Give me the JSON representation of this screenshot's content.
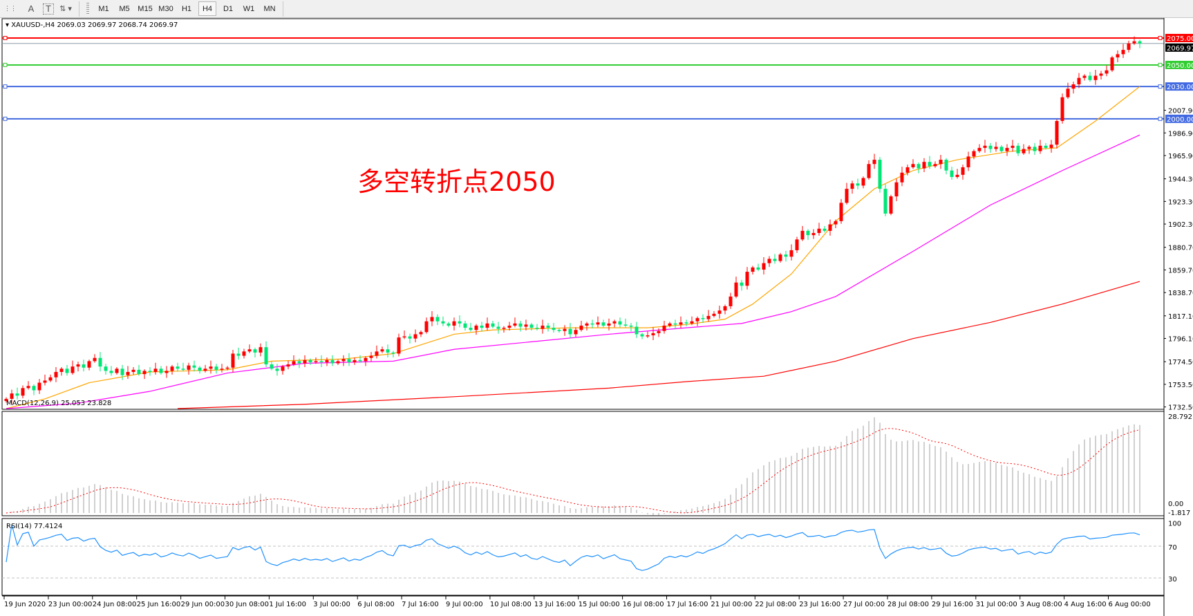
{
  "toolbar": {
    "tools": [
      {
        "icon": "grid-properties-icon",
        "label": "⋮⋮"
      },
      {
        "icon": "text-tool-icon",
        "label": "A"
      },
      {
        "icon": "text-label-tool-icon",
        "label": "T"
      },
      {
        "icon": "arrows-tool-icon",
        "label": "⇅ ▾"
      }
    ],
    "timeframes": [
      "M1",
      "M5",
      "M15",
      "M30",
      "H1",
      "H4",
      "D1",
      "W1",
      "MN"
    ],
    "active_timeframe": "H4"
  },
  "header": {
    "symbol": "XAUUSD-,H4",
    "ohlc": "2069.03 2069.97 2068.74 2069.97"
  },
  "annotation": {
    "text": "多空转折点2050",
    "color": "#ff0000"
  },
  "colors": {
    "bull": "#ff0000",
    "bear": "#00e676",
    "ma_fast": "#ffa500",
    "ma_mid": "#ff00ff",
    "ma_slow": "#ff0000",
    "macd_hist": "#c0c0c0",
    "macd_signal": "#ff0000",
    "rsi": "#1e90ff"
  },
  "chart_data": [
    {
      "type": "candlestick",
      "price_axis": {
        "range": [
          1732.5,
          2075.0
        ],
        "ticks": [
          "2007.90",
          "1986.90",
          "1965.90",
          "1944.30",
          "1923.30",
          "1902.30",
          "1880.70",
          "1859.70",
          "1838.70",
          "1817.10",
          "1796.10",
          "1774.50",
          "1753.50",
          "1732.50"
        ]
      },
      "time_labels": [
        "19 Jun 2020",
        "23 Jun 00:00",
        "24 Jun 08:00",
        "25 Jun 16:00",
        "29 Jun 00:00",
        "30 Jun 08:00",
        "1 Jul 16:00",
        "3 Jul 00:00",
        "6 Jul 08:00",
        "7 Jul 16:00",
        "9 Jul 00:00",
        "10 Jul 08:00",
        "13 Jul 16:00",
        "15 Jul 00:00",
        "16 Jul 08:00",
        "17 Jul 16:00",
        "21 Jul 00:00",
        "22 Jul 08:00",
        "23 Jul 16:00",
        "27 Jul 00:00",
        "28 Jul 08:00",
        "29 Jul 16:00",
        "31 Jul 00:00",
        "3 Aug 08:00",
        "4 Aug 16:00",
        "6 Aug 00:00"
      ],
      "closes": [
        1740,
        1745,
        1743,
        1750,
        1752,
        1748,
        1755,
        1757,
        1760,
        1765,
        1768,
        1764,
        1770,
        1772,
        1769,
        1775,
        1778,
        1770,
        1766,
        1764,
        1768,
        1762,
        1765,
        1767,
        1763,
        1766,
        1765,
        1768,
        1764,
        1766,
        1770,
        1768,
        1767,
        1771,
        1769,
        1766,
        1768,
        1770,
        1767,
        1768,
        1769,
        1782,
        1780,
        1784,
        1786,
        1783,
        1788,
        1772,
        1768,
        1766,
        1770,
        1772,
        1775,
        1773,
        1776,
        1774,
        1775,
        1774,
        1776,
        1773,
        1775,
        1777,
        1774,
        1776,
        1775,
        1778,
        1780,
        1784,
        1786,
        1783,
        1782,
        1797,
        1798,
        1796,
        1800,
        1802,
        1812,
        1816,
        1812,
        1810,
        1808,
        1812,
        1810,
        1806,
        1804,
        1808,
        1806,
        1810,
        1807,
        1805,
        1806,
        1808,
        1810,
        1807,
        1809,
        1806,
        1805,
        1808,
        1806,
        1804,
        1803,
        1805,
        1800,
        1804,
        1808,
        1810,
        1809,
        1811,
        1808,
        1810,
        1812,
        1809,
        1808,
        1807,
        1800,
        1798,
        1799,
        1801,
        1803,
        1808,
        1810,
        1809,
        1811,
        1810,
        1812,
        1815,
        1814,
        1817,
        1819,
        1822,
        1826,
        1835,
        1848,
        1845,
        1858,
        1862,
        1860,
        1866,
        1870,
        1868,
        1874,
        1872,
        1878,
        1888,
        1896,
        1892,
        1894,
        1898,
        1896,
        1902,
        1905,
        1922,
        1935,
        1940,
        1938,
        1945,
        1958,
        1962,
        1935,
        1912,
        1928,
        1941,
        1950,
        1955,
        1958,
        1954,
        1960,
        1956,
        1958,
        1962,
        1952,
        1946,
        1948,
        1955,
        1965,
        1970,
        1973,
        1975,
        1972,
        1974,
        1970,
        1973,
        1975,
        1968,
        1972,
        1974,
        1970,
        1975,
        1973,
        1976,
        1998,
        2020,
        2028,
        2032,
        2038,
        2040,
        2036,
        2040,
        2042,
        2045,
        2057,
        2060,
        2064,
        2070,
        2072,
        2069.97
      ],
      "moving_averages": [
        {
          "color_key": "ma_fast",
          "points": [
            [
              0,
              1728
            ],
            [
              7,
              1740
            ],
            [
              15,
              1755
            ],
            [
              26,
              1765
            ],
            [
              40,
              1767
            ],
            [
              48,
              1775
            ],
            [
              61,
              1777
            ],
            [
              70,
              1782
            ],
            [
              81,
              1800
            ],
            [
              88,
              1804
            ],
            [
              102,
              1806
            ],
            [
              116,
              1806
            ],
            [
              123,
              1809
            ],
            [
              130,
              1814
            ],
            [
              135,
              1828
            ],
            [
              142,
              1856
            ],
            [
              150,
              1905
            ],
            [
              157,
              1935
            ],
            [
              164,
              1952
            ],
            [
              172,
              1962
            ],
            [
              182,
              1970
            ],
            [
              190,
              1973
            ],
            [
              197,
              1998
            ],
            [
              205,
              2030
            ]
          ]
        },
        {
          "color_key": "ma_mid",
          "points": [
            [
              0,
              1727
            ],
            [
              13,
              1736
            ],
            [
              26,
              1747
            ],
            [
              40,
              1764
            ],
            [
              54,
              1773
            ],
            [
              70,
              1775
            ],
            [
              81,
              1786
            ],
            [
              95,
              1793
            ],
            [
              109,
              1800
            ],
            [
              123,
              1806
            ],
            [
              133,
              1810
            ],
            [
              142,
              1821
            ],
            [
              150,
              1835
            ],
            [
              164,
              1877
            ],
            [
              178,
              1920
            ],
            [
              191,
              1952
            ],
            [
              205,
              1985
            ]
          ]
        },
        {
          "color_key": "ma_slow",
          "points": [
            [
              31,
              1728
            ],
            [
              54,
              1735
            ],
            [
              81,
              1742
            ],
            [
              109,
              1750
            ],
            [
              123,
              1756
            ],
            [
              137,
              1761
            ],
            [
              150,
              1775
            ],
            [
              164,
              1796
            ],
            [
              178,
              1811
            ],
            [
              191,
              1828
            ],
            [
              205,
              1849
            ]
          ]
        }
      ],
      "horizontal_lines": [
        {
          "price": 2075.0,
          "label": "2075.00",
          "color": "#ff0000"
        },
        {
          "price": 2050.0,
          "label": "2050.00",
          "color": "#32cd32"
        },
        {
          "price": 2030.0,
          "label": "2030.00",
          "color": "#4169e1"
        },
        {
          "price": 2000.0,
          "label": "2000.00",
          "color": "#4169e1"
        }
      ],
      "current_price": {
        "price": 2069.97,
        "label": "2069.97"
      }
    },
    {
      "type": "macd",
      "title": "MACD(12,26,9) 25.053 23.828",
      "params": [
        12,
        26,
        9
      ],
      "axis_labels": [
        "28.792",
        "0.00",
        "-1.817"
      ],
      "range": [
        -1.817,
        28.792
      ]
    },
    {
      "type": "rsi",
      "title": "RSI(14) 77.4124",
      "period": 14,
      "axis_labels": [
        "100",
        "70",
        "30"
      ],
      "levels": [
        70,
        30
      ]
    }
  ]
}
